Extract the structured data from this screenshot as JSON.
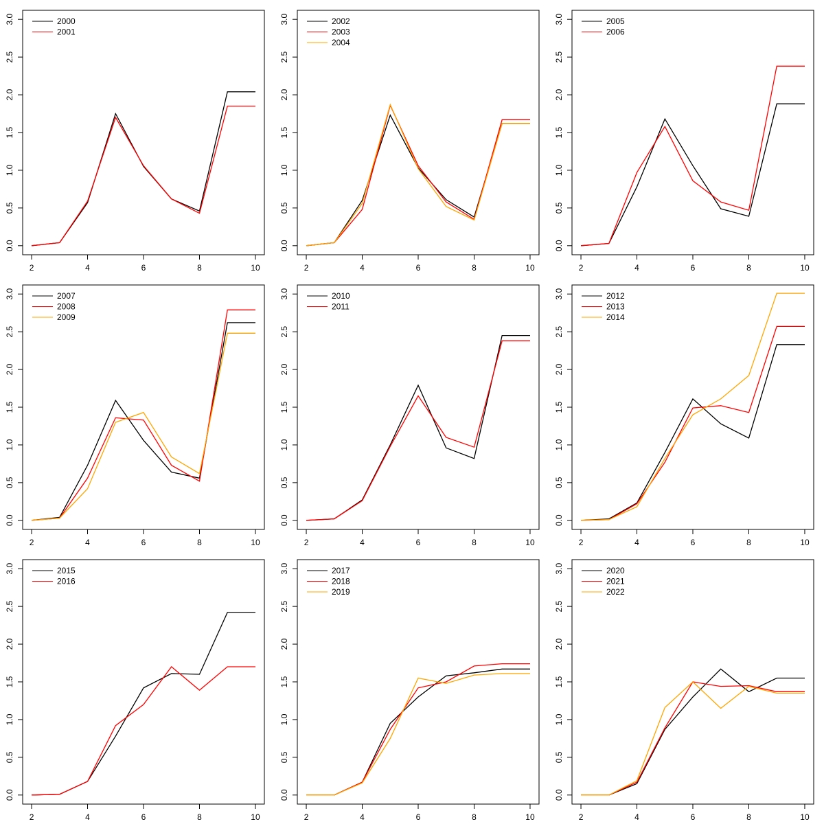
{
  "palette": {
    "black": "#000000",
    "red": "#ff0000",
    "orange": "#ffa500"
  },
  "chart_data": [
    {
      "type": "line",
      "x": [
        2,
        3,
        4,
        5,
        6,
        7,
        8,
        9,
        10
      ],
      "xlim": [
        2,
        10
      ],
      "ylim": [
        0,
        3
      ],
      "xticks": [
        "2",
        "4",
        "6",
        "8",
        "10"
      ],
      "yticks": [
        "0.0",
        "0.5",
        "1.0",
        "1.5",
        "2.0",
        "2.5",
        "3.0"
      ],
      "legend_position": "top-left",
      "series": [
        {
          "name": "2000",
          "color": "#000000",
          "values": [
            0,
            0.04,
            0.57,
            1.75,
            1.05,
            0.62,
            0.46,
            2.04,
            2.04
          ]
        },
        {
          "name": "2001",
          "color": "#ff0000",
          "values": [
            0,
            0.04,
            0.59,
            1.7,
            1.06,
            0.62,
            0.43,
            1.85,
            1.85
          ]
        }
      ]
    },
    {
      "type": "line",
      "x": [
        2,
        3,
        4,
        5,
        6,
        7,
        8,
        9,
        10
      ],
      "xlim": [
        2,
        10
      ],
      "ylim": [
        0,
        3
      ],
      "xticks": [
        "2",
        "4",
        "6",
        "8",
        "10"
      ],
      "yticks": [
        "0.0",
        "0.5",
        "1.0",
        "1.5",
        "2.0",
        "2.5",
        "3.0"
      ],
      "legend_position": "top-left",
      "series": [
        {
          "name": "2002",
          "color": "#000000",
          "values": [
            0,
            0.04,
            0.6,
            1.73,
            1.03,
            0.61,
            0.38,
            1.62,
            1.62
          ]
        },
        {
          "name": "2003",
          "color": "#ff0000",
          "values": [
            0,
            0.04,
            0.48,
            1.86,
            1.06,
            0.58,
            0.35,
            1.67,
            1.67
          ]
        },
        {
          "name": "2004",
          "color": "#ffa500",
          "values": [
            0,
            0.04,
            0.56,
            1.87,
            1.02,
            0.52,
            0.34,
            1.62,
            1.62
          ]
        }
      ]
    },
    {
      "type": "line",
      "x": [
        2,
        3,
        4,
        5,
        6,
        7,
        8,
        9,
        10
      ],
      "xlim": [
        2,
        10
      ],
      "ylim": [
        0,
        3
      ],
      "xticks": [
        "2",
        "4",
        "6",
        "8",
        "10"
      ],
      "yticks": [
        "0.0",
        "0.5",
        "1.0",
        "1.5",
        "2.0",
        "2.5",
        "3.0"
      ],
      "legend_position": "top-left",
      "series": [
        {
          "name": "2005",
          "color": "#000000",
          "values": [
            0,
            0.03,
            0.78,
            1.68,
            1.06,
            0.49,
            0.39,
            1.88,
            1.88
          ]
        },
        {
          "name": "2006",
          "color": "#ff0000",
          "values": [
            0,
            0.03,
            0.97,
            1.58,
            0.86,
            0.58,
            0.47,
            2.38,
            2.38
          ]
        }
      ]
    },
    {
      "type": "line",
      "x": [
        2,
        3,
        4,
        5,
        6,
        7,
        8,
        9,
        10
      ],
      "xlim": [
        2,
        10
      ],
      "ylim": [
        0,
        3
      ],
      "xticks": [
        "2",
        "4",
        "6",
        "8",
        "10"
      ],
      "yticks": [
        "0.0",
        "0.5",
        "1.0",
        "1.5",
        "2.0",
        "2.5",
        "3.0"
      ],
      "legend_position": "top-left",
      "series": [
        {
          "name": "2007",
          "color": "#000000",
          "values": [
            0,
            0.04,
            0.73,
            1.59,
            1.06,
            0.64,
            0.56,
            2.62,
            2.62
          ]
        },
        {
          "name": "2008",
          "color": "#ff0000",
          "values": [
            0,
            0.03,
            0.56,
            1.36,
            1.33,
            0.73,
            0.52,
            2.79,
            2.79
          ]
        },
        {
          "name": "2009",
          "color": "#ffa500",
          "values": [
            0,
            0.03,
            0.42,
            1.3,
            1.43,
            0.84,
            0.62,
            2.48,
            2.48
          ]
        }
      ]
    },
    {
      "type": "line",
      "x": [
        2,
        3,
        4,
        5,
        6,
        7,
        8,
        9,
        10
      ],
      "xlim": [
        2,
        10
      ],
      "ylim": [
        0,
        3
      ],
      "xticks": [
        "2",
        "4",
        "6",
        "8",
        "10"
      ],
      "yticks": [
        "0.0",
        "0.5",
        "1.0",
        "1.5",
        "2.0",
        "2.5",
        "3.0"
      ],
      "legend_position": "top-left",
      "series": [
        {
          "name": "2010",
          "color": "#000000",
          "values": [
            0,
            0.02,
            0.27,
            1.0,
            1.79,
            0.96,
            0.82,
            2.45,
            2.45
          ]
        },
        {
          "name": "2011",
          "color": "#ff0000",
          "values": [
            0,
            0.02,
            0.26,
            0.98,
            1.65,
            1.1,
            0.97,
            2.38,
            2.38
          ]
        }
      ]
    },
    {
      "type": "line",
      "x": [
        2,
        3,
        4,
        5,
        6,
        7,
        8,
        9,
        10
      ],
      "xlim": [
        2,
        10
      ],
      "ylim": [
        0,
        3
      ],
      "xticks": [
        "2",
        "4",
        "6",
        "8",
        "10"
      ],
      "yticks": [
        "0.0",
        "0.5",
        "1.0",
        "1.5",
        "2.0",
        "2.5",
        "3.0"
      ],
      "legend_position": "top-left",
      "series": [
        {
          "name": "2012",
          "color": "#000000",
          "values": [
            0,
            0.02,
            0.23,
            0.9,
            1.61,
            1.28,
            1.09,
            2.33,
            2.33
          ]
        },
        {
          "name": "2013",
          "color": "#ff0000",
          "values": [
            0,
            0.01,
            0.22,
            0.77,
            1.49,
            1.52,
            1.43,
            2.57,
            2.57
          ]
        },
        {
          "name": "2014",
          "color": "#ffa500",
          "values": [
            0,
            0.01,
            0.18,
            0.82,
            1.4,
            1.61,
            1.92,
            3.01,
            3.01
          ]
        }
      ]
    },
    {
      "type": "line",
      "x": [
        2,
        3,
        4,
        5,
        6,
        7,
        8,
        9,
        10
      ],
      "xlim": [
        2,
        10
      ],
      "ylim": [
        0,
        3
      ],
      "xticks": [
        "2",
        "4",
        "6",
        "8",
        "10"
      ],
      "yticks": [
        "0.0",
        "0.5",
        "1.0",
        "1.5",
        "2.0",
        "2.5",
        "3.0"
      ],
      "legend_position": "top-left",
      "series": [
        {
          "name": "2015",
          "color": "#000000",
          "values": [
            0,
            0.01,
            0.18,
            0.78,
            1.42,
            1.61,
            1.6,
            2.42,
            2.42
          ]
        },
        {
          "name": "2016",
          "color": "#ff0000",
          "values": [
            0,
            0.01,
            0.18,
            0.92,
            1.2,
            1.7,
            1.39,
            1.7,
            1.7
          ]
        }
      ]
    },
    {
      "type": "line",
      "x": [
        2,
        3,
        4,
        5,
        6,
        7,
        8,
        9,
        10
      ],
      "xlim": [
        2,
        10
      ],
      "ylim": [
        0,
        3
      ],
      "xticks": [
        "2",
        "4",
        "6",
        "8",
        "10"
      ],
      "yticks": [
        "0.0",
        "0.5",
        "1.0",
        "1.5",
        "2.0",
        "2.5",
        "3.0"
      ],
      "legend_position": "top-left",
      "series": [
        {
          "name": "2017",
          "color": "#000000",
          "values": [
            0,
            0,
            0.17,
            0.95,
            1.3,
            1.58,
            1.62,
            1.67,
            1.67
          ]
        },
        {
          "name": "2018",
          "color": "#ff0000",
          "values": [
            0,
            0,
            0.17,
            0.87,
            1.42,
            1.5,
            1.71,
            1.74,
            1.74
          ]
        },
        {
          "name": "2019",
          "color": "#ffa500",
          "values": [
            0,
            0,
            0.16,
            0.75,
            1.55,
            1.48,
            1.59,
            1.61,
            1.61
          ]
        }
      ]
    },
    {
      "type": "line",
      "x": [
        2,
        3,
        4,
        5,
        6,
        7,
        8,
        9,
        10
      ],
      "xlim": [
        2,
        10
      ],
      "ylim": [
        0,
        3
      ],
      "xticks": [
        "2",
        "4",
        "6",
        "8",
        "10"
      ],
      "yticks": [
        "0.0",
        "0.5",
        "1.0",
        "1.5",
        "2.0",
        "2.5",
        "3.0"
      ],
      "legend_position": "top-left",
      "series": [
        {
          "name": "2020",
          "color": "#000000",
          "values": [
            0,
            0,
            0.15,
            0.87,
            1.3,
            1.67,
            1.37,
            1.55,
            1.55
          ]
        },
        {
          "name": "2021",
          "color": "#ff0000",
          "values": [
            0,
            0,
            0.17,
            0.89,
            1.5,
            1.44,
            1.45,
            1.37,
            1.37
          ]
        },
        {
          "name": "2022",
          "color": "#ffa500",
          "values": [
            0,
            0,
            0.19,
            1.16,
            1.5,
            1.15,
            1.44,
            1.35,
            1.35
          ]
        }
      ]
    }
  ]
}
